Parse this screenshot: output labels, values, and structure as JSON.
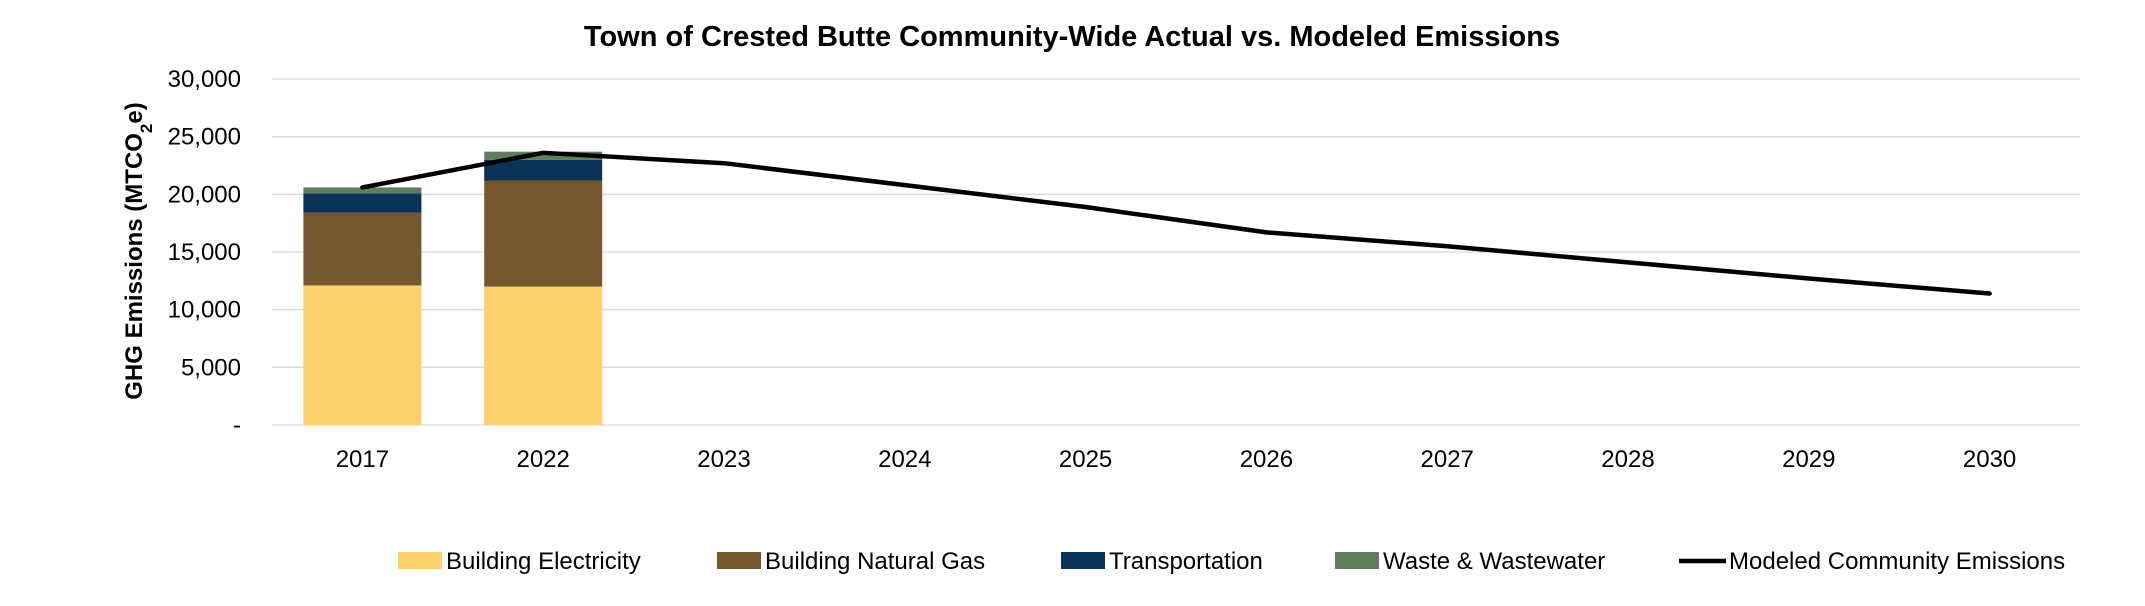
{
  "chart_data": {
    "type": "bar",
    "title": "Town of Crested Butte Community-Wide Actual vs. Modeled Emissions",
    "ylabel": "GHG Emissions (MTCO2e)",
    "ylabel_parts": {
      "pre": "GHG Emissions (MTCO",
      "sub": "2",
      "post": "e)"
    },
    "xlabel": "",
    "ylim": [
      0,
      30000
    ],
    "yticks": [
      0,
      5000,
      10000,
      15000,
      20000,
      25000,
      30000
    ],
    "ytick_labels": [
      "-",
      "5,000",
      "10,000",
      "15,000",
      "20,000",
      "25,000",
      "30,000"
    ],
    "grid": true,
    "legend_position": "bottom",
    "categories": [
      "2017",
      "2022",
      "2023",
      "2024",
      "2025",
      "2026",
      "2027",
      "2028",
      "2029",
      "2030"
    ],
    "series": [
      {
        "name": "Building Electricity",
        "kind": "bar",
        "color": "#FCD06A",
        "values": [
          12100,
          12000,
          null,
          null,
          null,
          null,
          null,
          null,
          null,
          null
        ]
      },
      {
        "name": "Building Natural Gas",
        "kind": "bar",
        "color": "#76582E",
        "values": [
          6300,
          9200,
          null,
          null,
          null,
          null,
          null,
          null,
          null,
          null
        ]
      },
      {
        "name": "Transportation",
        "kind": "bar",
        "color": "#0A3357",
        "values": [
          1700,
          1800,
          null,
          null,
          null,
          null,
          null,
          null,
          null,
          null
        ]
      },
      {
        "name": "Waste & Wastewater",
        "kind": "bar",
        "color": "#5E7E5E",
        "values": [
          500,
          700,
          null,
          null,
          null,
          null,
          null,
          null,
          null,
          null
        ]
      },
      {
        "name": "Modeled Community Emissions",
        "kind": "line",
        "color": "#000000",
        "values": [
          20600,
          23600,
          22700,
          20800,
          18900,
          16700,
          15500,
          14100,
          12700,
          11400
        ]
      }
    ]
  }
}
